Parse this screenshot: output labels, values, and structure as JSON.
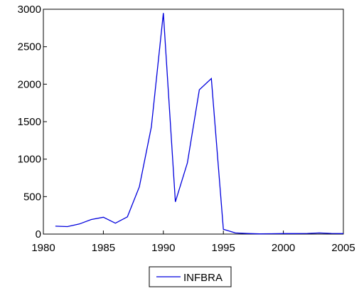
{
  "chart_data": {
    "type": "line",
    "x": [
      1981,
      1982,
      1983,
      1984,
      1985,
      1986,
      1987,
      1988,
      1989,
      1990,
      1991,
      1992,
      1993,
      1994,
      1995,
      1996,
      1997,
      1998,
      1999,
      2000,
      2001,
      2002,
      2003,
      2004,
      2005
    ],
    "series": [
      {
        "name": "INFBRA",
        "color": "#0000dd",
        "values": [
          105,
          100,
          135,
          195,
          225,
          145,
          230,
          630,
          1430,
          2950,
          430,
          950,
          1925,
          2075,
          65,
          15,
          8,
          3,
          5,
          7,
          7,
          9,
          15,
          9,
          7
        ]
      }
    ],
    "xlim": [
      1980,
      2005
    ],
    "ylim": [
      0,
      3000
    ],
    "xticks": [
      1980,
      1985,
      1990,
      1995,
      2000,
      2005
    ],
    "yticks": [
      0,
      500,
      1000,
      1500,
      2000,
      2500,
      3000
    ],
    "grid": false,
    "legend_position": "bottom-center"
  }
}
